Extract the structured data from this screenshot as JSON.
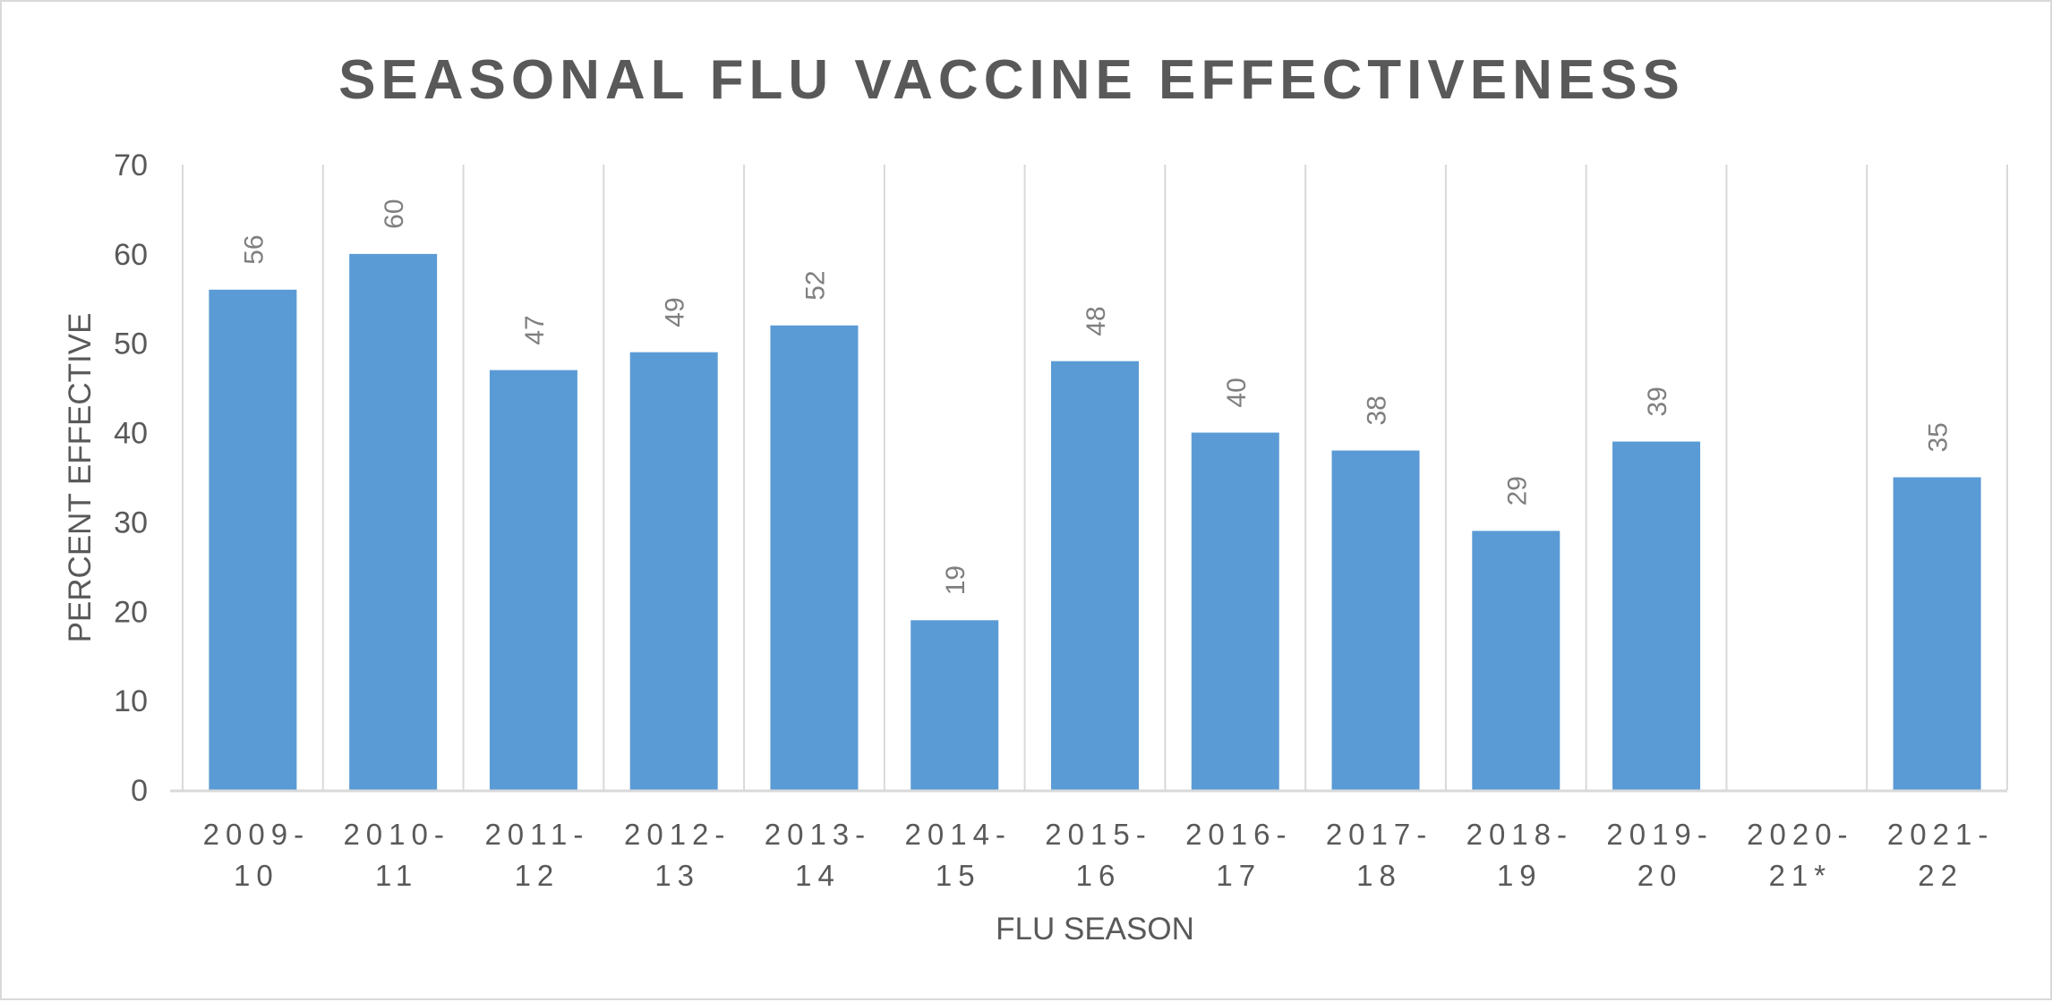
{
  "chart_data": {
    "type": "bar",
    "title": "SEASONAL FLU VACCINE EFFECTIVENESS",
    "xlabel": "FLU SEASON",
    "ylabel": "PERCENT EFFECTIVE",
    "categories": [
      [
        "2009-",
        "10"
      ],
      [
        "2010-",
        "11"
      ],
      [
        "2011-",
        "12"
      ],
      [
        "2012-",
        "13"
      ],
      [
        "2013-",
        "14"
      ],
      [
        "2014-",
        "15"
      ],
      [
        "2015-",
        "16"
      ],
      [
        "2016-",
        "17"
      ],
      [
        "2017-",
        "18"
      ],
      [
        "2018-",
        "19"
      ],
      [
        "2019-",
        "20"
      ],
      [
        "2020-",
        "21*"
      ],
      [
        "2021-",
        "22"
      ]
    ],
    "values": [
      56,
      60,
      47,
      49,
      52,
      19,
      48,
      40,
      38,
      29,
      39,
      null,
      35
    ],
    "ylim": [
      0,
      70
    ],
    "yticks": [
      0,
      10,
      20,
      30,
      40,
      50,
      60,
      70
    ],
    "grid": "vertical",
    "data_labels": true,
    "colors": {
      "bar": "#5b9bd5",
      "gridline": "#d9d9d9",
      "text": "#595959",
      "data_label": "#7f7f7f"
    }
  }
}
